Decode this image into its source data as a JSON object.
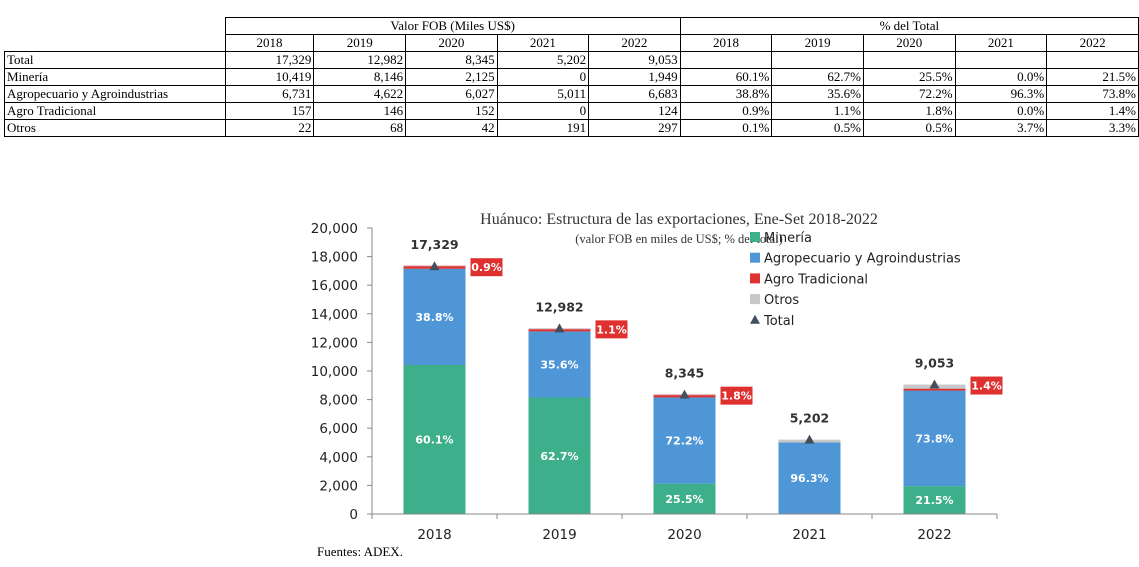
{
  "table": {
    "group_headers": [
      "Valor FOB (Miles US$)",
      "% del Total"
    ],
    "years": [
      "2018",
      "2019",
      "2020",
      "2021",
      "2022"
    ],
    "rows": [
      {
        "label": "Total",
        "fob": [
          "17,329",
          "12,982",
          "8,345",
          "5,202",
          "9,053"
        ],
        "pct": [
          "",
          "",
          "",
          "",
          ""
        ]
      },
      {
        "label": "Minería",
        "fob": [
          "10,419",
          "8,146",
          "2,125",
          "0",
          "1,949"
        ],
        "pct": [
          "60.1%",
          "62.7%",
          "25.5%",
          "0.0%",
          "21.5%"
        ]
      },
      {
        "label": "Agropecuario y Agroindustrias",
        "fob": [
          "6,731",
          "4,622",
          "6,027",
          "5,011",
          "6,683"
        ],
        "pct": [
          "38.8%",
          "35.6%",
          "72.2%",
          "96.3%",
          "73.8%"
        ]
      },
      {
        "label": "Agro Tradicional",
        "fob": [
          "157",
          "146",
          "152",
          "0",
          "124"
        ],
        "pct": [
          "0.9%",
          "1.1%",
          "1.8%",
          "0.0%",
          "1.4%"
        ]
      },
      {
        "label": "Otros",
        "fob": [
          "22",
          "68",
          "42",
          "191",
          "297"
        ],
        "pct": [
          "0.1%",
          "0.5%",
          "0.5%",
          "3.7%",
          "3.3%"
        ]
      }
    ]
  },
  "chart_data": {
    "type": "bar",
    "stacked": true,
    "title": "Huánuco: Estructura de las exportaciones, Ene-Set 2018-2022",
    "subtitle": "(valor FOB en miles de US$; % del total)",
    "categories": [
      "2018",
      "2019",
      "2020",
      "2021",
      "2022"
    ],
    "ylim": [
      0,
      20000
    ],
    "yticks": [
      0,
      2000,
      4000,
      6000,
      8000,
      10000,
      12000,
      14000,
      16000,
      18000,
      20000
    ],
    "ytick_labels": [
      "0",
      "2,000",
      "4,000",
      "6,000",
      "8,000",
      "10,000",
      "12,000",
      "14,000",
      "16,000",
      "18,000",
      "20,000"
    ],
    "series": [
      {
        "name": "Minería",
        "color": "#3daf8a",
        "values": [
          10419,
          8146,
          2125,
          0,
          1949
        ],
        "labels": [
          "60.1%",
          "62.7%",
          "25.5%",
          "",
          "21.5%"
        ]
      },
      {
        "name": "Agropecuario y Agroindustrias",
        "color": "#4e96d6",
        "values": [
          6731,
          4622,
          6027,
          5011,
          6683
        ],
        "labels": [
          "38.8%",
          "35.6%",
          "72.2%",
          "96.3%",
          "73.8%"
        ]
      },
      {
        "name": "Agro Tradicional",
        "color": "#e03131",
        "values": [
          157,
          146,
          152,
          0,
          124
        ],
        "labels": [
          "0.9%",
          "1.1%",
          "1.8%",
          "",
          "1.4%"
        ]
      },
      {
        "name": "Otros",
        "color": "#c8c8c8",
        "values": [
          22,
          68,
          42,
          191,
          297
        ],
        "labels": [
          "",
          "",
          "",
          "",
          ""
        ]
      }
    ],
    "total": {
      "name": "Total",
      "values": [
        17329,
        12982,
        8345,
        5202,
        9053
      ],
      "labels": [
        "17,329",
        "12,982",
        "8,345",
        "5,202",
        "9,053"
      ],
      "color": "#444f5e"
    },
    "legend_position": "top-right"
  },
  "source": "Fuentes: ADEX."
}
